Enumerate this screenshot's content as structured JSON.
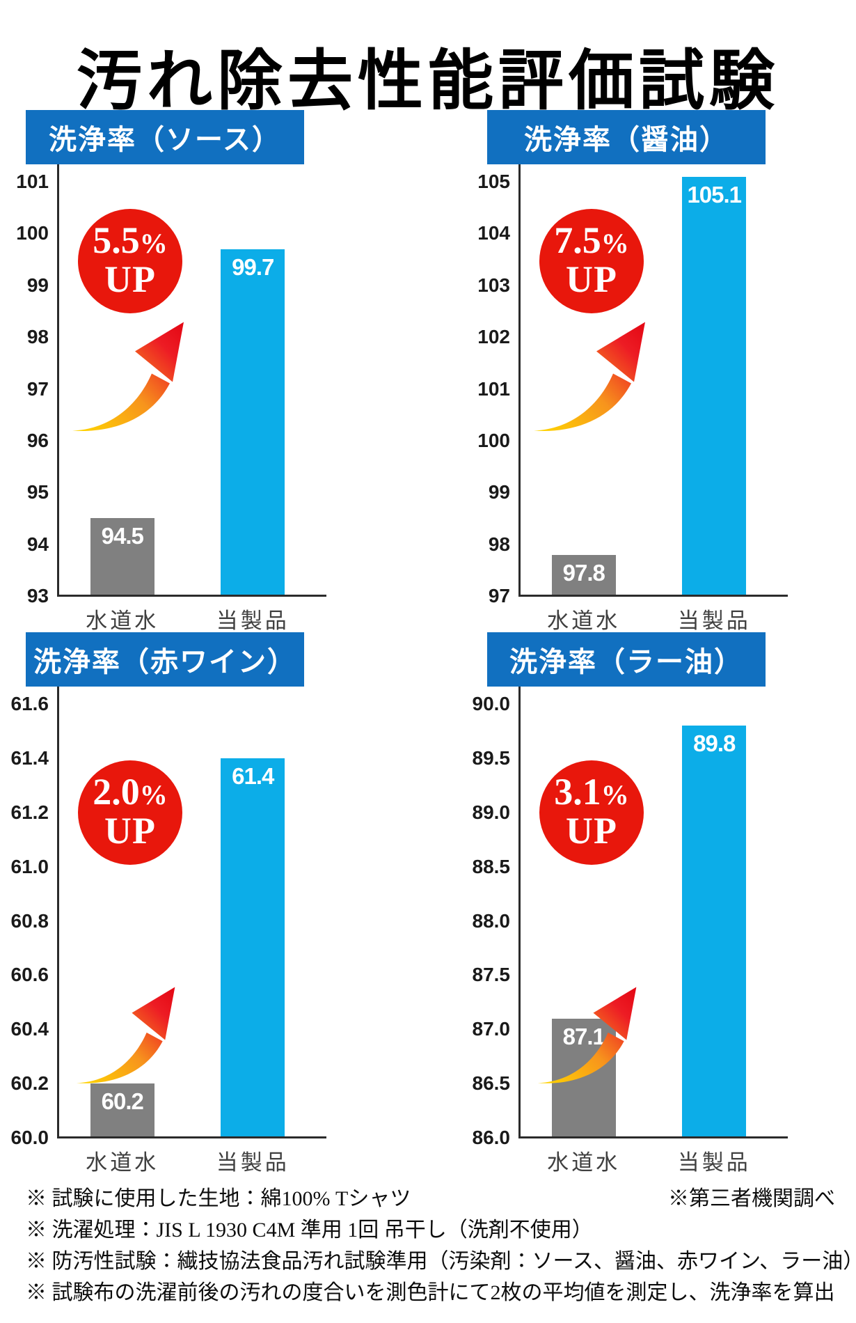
{
  "page_title": "汚れ除去性能評価試験",
  "palette": {
    "header_blue": "#1170c0",
    "bar_gray": "#808080",
    "bar_cyan": "#0cade8",
    "badge_red": "#e8170c",
    "arrow_yellow": "#ffd800",
    "arrow_orange": "#f7941d",
    "arrow_red": "#ed1c24",
    "arrow_red_deep": "#e30613"
  },
  "chart_data": [
    {
      "type": "bar",
      "title": "洗浄率（ソース）",
      "categories": [
        "水道水",
        "当製品"
      ],
      "values": [
        94.5,
        99.7
      ],
      "value_labels": [
        "94.5",
        "99.7"
      ],
      "bar_colors": [
        "#808080",
        "#0cade8"
      ],
      "ylim": [
        93,
        101
      ],
      "ytick_labels": [
        "101",
        "100",
        "99",
        "98",
        "97",
        "96",
        "95",
        "94",
        "93"
      ],
      "annotation": {
        "number": "5.5",
        "sign": "%",
        "word": "UP"
      },
      "grid": false,
      "legend": false
    },
    {
      "type": "bar",
      "title": "洗浄率（醤油）",
      "categories": [
        "水道水",
        "当製品"
      ],
      "values": [
        97.8,
        105.1
      ],
      "value_labels": [
        "97.8",
        "105.1"
      ],
      "bar_colors": [
        "#808080",
        "#0cade8"
      ],
      "ylim": [
        97,
        105
      ],
      "ytick_labels": [
        "105",
        "104",
        "103",
        "102",
        "101",
        "100",
        "99",
        "98",
        "97"
      ],
      "annotation": {
        "number": "7.5",
        "sign": "%",
        "word": "UP"
      },
      "grid": false,
      "legend": false
    },
    {
      "type": "bar",
      "title": "洗浄率（赤ワイン）",
      "categories": [
        "水道水",
        "当製品"
      ],
      "values": [
        60.2,
        61.4
      ],
      "value_labels": [
        "60.2",
        "61.4"
      ],
      "bar_colors": [
        "#808080",
        "#0cade8"
      ],
      "ylim": [
        60.0,
        61.6
      ],
      "ytick_labels": [
        "61.6",
        "61.4",
        "61.2",
        "61.0",
        "60.8",
        "60.6",
        "60.4",
        "60.2",
        "60.0"
      ],
      "annotation": {
        "number": "2.0",
        "sign": "%",
        "word": "UP"
      },
      "grid": false,
      "legend": false
    },
    {
      "type": "bar",
      "title": "洗浄率（ラー油）",
      "categories": [
        "水道水",
        "当製品"
      ],
      "values": [
        87.1,
        89.8
      ],
      "value_labels": [
        "87.1",
        "89.8"
      ],
      "bar_colors": [
        "#808080",
        "#0cade8"
      ],
      "ylim": [
        86.0,
        90.0
      ],
      "ytick_labels": [
        "90.0",
        "89.5",
        "89.0",
        "88.5",
        "88.0",
        "87.5",
        "87.0",
        "86.5",
        "86.0"
      ],
      "annotation": {
        "number": "3.1",
        "sign": "%",
        "word": "UP"
      },
      "grid": false,
      "legend": false
    }
  ],
  "footnotes": {
    "lines": [
      {
        "text": "※ 試験に使用した生地：綿100% Tシャツ",
        "right_text": "※第三者機関調べ"
      },
      {
        "text": "※ 洗濯処理：JIS L 1930 C4M 準用 1回 吊干し（洗剤不使用）",
        "right_text": ""
      },
      {
        "text": "※ 防汚性試験：繊技協法食品汚れ試験準用（汚染剤：ソース、醤油、赤ワイン、ラー油）",
        "right_text": ""
      },
      {
        "text": "※ 試験布の洗濯前後の汚れの度合いを測色計にて2枚の平均値を測定し、洗浄率を算出",
        "right_text": ""
      }
    ]
  }
}
